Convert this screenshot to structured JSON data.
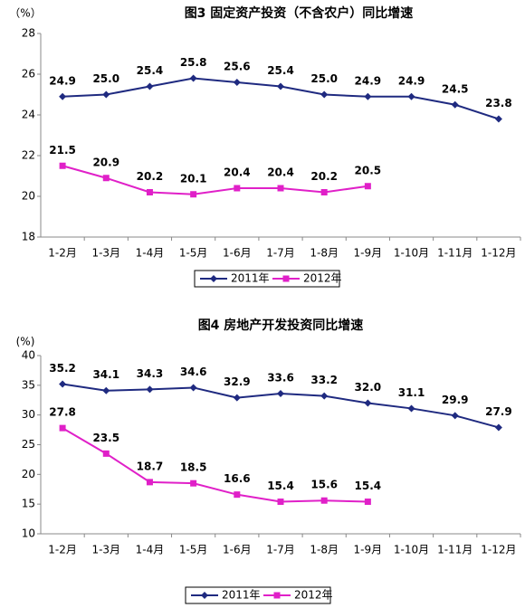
{
  "chart_data": [
    {
      "type": "line",
      "title": "图3  固定资产投资（不含农户）同比增速",
      "y_label": "（%）",
      "categories": [
        "1-2月",
        "1-3月",
        "1-4月",
        "1-5月",
        "1-6月",
        "1-7月",
        "1-8月",
        "1-9月",
        "1-10月",
        "1-11月",
        "1-12月"
      ],
      "ylim": [
        18,
        28
      ],
      "yticks": [
        18,
        20,
        22,
        24,
        26,
        28
      ],
      "grid": false,
      "series": [
        {
          "name": "2011年",
          "color": "#1f2a80",
          "marker": "diamond",
          "values": [
            24.9,
            25,
            25.4,
            25.8,
            25.6,
            25.4,
            25,
            24.9,
            24.9,
            24.5,
            23.8
          ],
          "value_labels": [
            "24.9",
            "25.0",
            "25.4",
            "25.8",
            "25.6",
            "25.4",
            "25.0",
            "24.9",
            "24.9",
            "24.5",
            "23.8"
          ]
        },
        {
          "name": "2012年",
          "color": "#e020c8",
          "marker": "square",
          "values": [
            21.5,
            20.9,
            20.2,
            20.1,
            20.4,
            20.4,
            20.2,
            20.5,
            null,
            null,
            null
          ],
          "value_labels": [
            "21.5",
            "20.9",
            "20.2",
            "20.1",
            "20.4",
            "20.4",
            "20.2",
            "20.5",
            null,
            null,
            null
          ]
        }
      ]
    },
    {
      "type": "line",
      "title": "图4  房地产开发投资同比增速",
      "y_label": "(%)",
      "categories": [
        "1-2月",
        "1-3月",
        "1-4月",
        "1-5月",
        "1-6月",
        "1-7月",
        "1-8月",
        "1-9月",
        "1-10月",
        "1-11月",
        "1-12月"
      ],
      "ylim": [
        10,
        40
      ],
      "yticks": [
        10,
        15,
        20,
        25,
        30,
        35,
        40
      ],
      "grid": false,
      "series": [
        {
          "name": "2011年",
          "color": "#1f2a80",
          "marker": "diamond",
          "values": [
            35.2,
            34.1,
            34.3,
            34.6,
            32.9,
            33.6,
            33.2,
            32,
            31.1,
            29.9,
            27.9
          ],
          "value_labels": [
            "35.2",
            "34.1",
            "34.3",
            "34.6",
            "32.9",
            "33.6",
            "33.2",
            "32.0",
            "31.1",
            "29.9",
            "27.9"
          ]
        },
        {
          "name": "2012年",
          "color": "#e020c8",
          "marker": "square",
          "values": [
            27.8,
            23.5,
            18.7,
            18.5,
            16.6,
            15.4,
            15.6,
            15.4,
            null,
            null,
            null
          ],
          "value_labels": [
            "27.8",
            "23.5",
            "18.7",
            "18.5",
            "16.6",
            "15.4",
            "15.6",
            "15.4",
            null,
            null,
            null
          ]
        }
      ]
    }
  ]
}
